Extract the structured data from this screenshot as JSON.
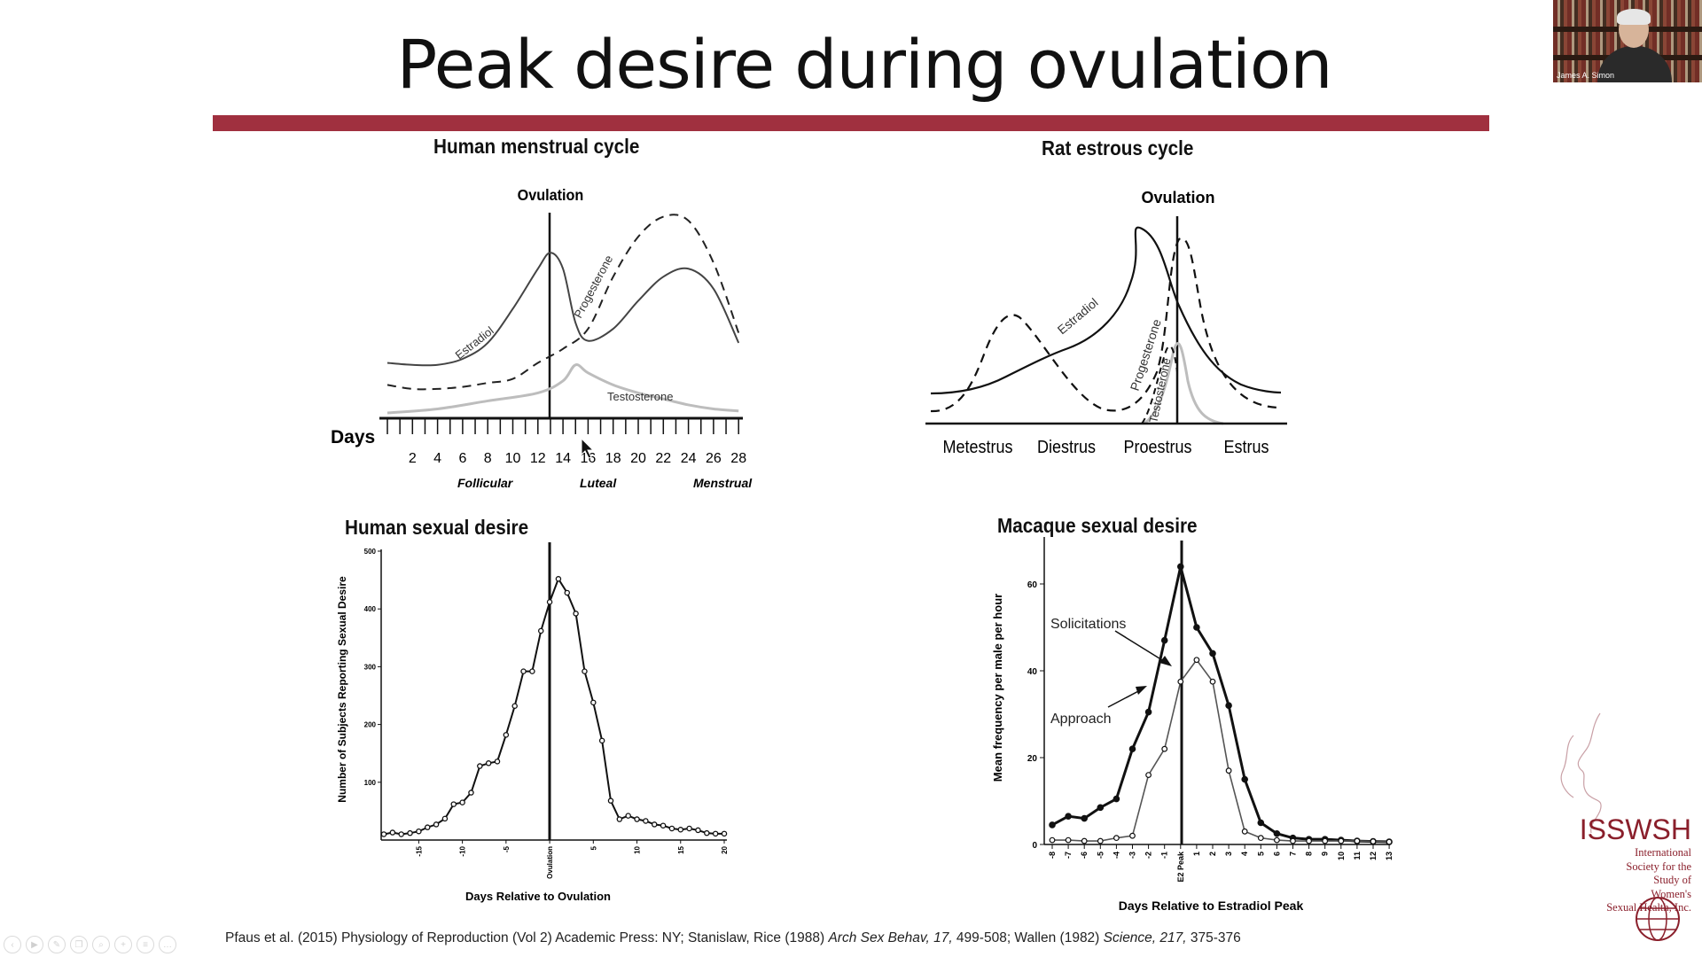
{
  "slide": {
    "title": "Peak desire during ovulation",
    "accent_color": "#a0303f"
  },
  "speaker": {
    "name": "James A. Simon"
  },
  "toolbar": {
    "icons": [
      "previous-icon",
      "play-icon",
      "pen-icon",
      "copy-icon",
      "zoom-icon",
      "zoom-in-icon",
      "menu-icon",
      "more-icon"
    ]
  },
  "panels": {
    "human_cycle": {
      "title": "Human menstrual cycle",
      "ovulation_label": "Ovulation",
      "estradiol_label": "Estradiol",
      "progesterone_label": "Progesterone",
      "testosterone_label": "Testosterone",
      "days_label": "Days",
      "phase_follicular": "Follicular",
      "phase_luteal": "Luteal",
      "phase_menstrual": "Menstrual"
    },
    "rat_cycle": {
      "title": "Rat estrous cycle",
      "ovulation_label": "Ovulation",
      "estradiol_label": "Estradiol",
      "progesterone_label": "Progesterone",
      "testosterone_label": "Testosterone"
    },
    "human_desire": {
      "title": "Human sexual desire",
      "ylabel": "Number of Subjects Reporting Sexual Desire",
      "xlabel": "Days Relative to Ovulation",
      "ovulation_tick": "Ovulation"
    },
    "macaque_desire": {
      "title": "Macaque sexual desire",
      "ylabel": "Mean frequency per male per hour",
      "xlabel": "Days Relative to Estradiol Peak",
      "solicitations_label": "Solicitations",
      "approach_label": "Approach",
      "peak_tick": "E2 Peak"
    }
  },
  "chart_data": [
    {
      "type": "line",
      "title": "Human menstrual cycle",
      "xlabel": "Days",
      "x_ticks": [
        "2",
        "4",
        "6",
        "8",
        "10",
        "12",
        "14",
        "16",
        "18",
        "20",
        "22",
        "24",
        "26",
        "28"
      ],
      "xlim": [
        0,
        29
      ],
      "phases": [
        "Follicular",
        "Luteal",
        "Menstrual"
      ],
      "ovulation_day": 14,
      "series": [
        {
          "name": "Estradiol",
          "style": "solid",
          "x": [
            0,
            2,
            4,
            6,
            8,
            10,
            12,
            13,
            14,
            15,
            16,
            18,
            20,
            22,
            24,
            26,
            28
          ],
          "y": [
            0.25,
            0.24,
            0.24,
            0.27,
            0.35,
            0.52,
            0.72,
            0.8,
            0.72,
            0.45,
            0.36,
            0.42,
            0.56,
            0.68,
            0.72,
            0.62,
            0.35
          ]
        },
        {
          "name": "Progesterone",
          "style": "dashed",
          "x": [
            0,
            2,
            4,
            6,
            8,
            10,
            12,
            14,
            16,
            18,
            20,
            22,
            24,
            26,
            28
          ],
          "y": [
            0.14,
            0.12,
            0.12,
            0.13,
            0.15,
            0.17,
            0.25,
            0.32,
            0.42,
            0.68,
            0.88,
            0.98,
            0.96,
            0.75,
            0.4
          ]
        },
        {
          "name": "Testosterone",
          "style": "solid",
          "color": "#bdbdbd",
          "x": [
            0,
            4,
            8,
            12,
            14,
            15,
            16,
            18,
            20,
            22,
            24,
            26,
            28
          ],
          "y": [
            0.0,
            0.02,
            0.06,
            0.1,
            0.16,
            0.24,
            0.2,
            0.14,
            0.1,
            0.07,
            0.04,
            0.02,
            0.01
          ]
        }
      ]
    },
    {
      "type": "line",
      "title": "Rat estrous cycle",
      "categories": [
        "Metestrus",
        "Diestrus",
        "Proestrus",
        "Estrus"
      ],
      "series": [
        {
          "name": "Estradiol",
          "style": "solid"
        },
        {
          "name": "Progesterone",
          "style": "dashed"
        },
        {
          "name": "Testosterone",
          "style": "solid",
          "color": "#bdbdbd"
        }
      ]
    },
    {
      "type": "line",
      "title": "Human sexual desire",
      "xlabel": "Days Relative to Ovulation",
      "ylabel": "Number of Subjects Reporting Sexual Desire",
      "xlim": [
        -19,
        20
      ],
      "ylim": [
        0,
        500
      ],
      "x_ticks": [
        "-15",
        "-10",
        "-5",
        "Ovulation",
        "5",
        "10",
        "15",
        "20"
      ],
      "y_ticks": [
        "100",
        "200",
        "300",
        "400",
        "500"
      ],
      "x": [
        -19,
        -18,
        -17,
        -16,
        -15,
        -14,
        -13,
        -12,
        -11,
        -10,
        -9,
        -8,
        -7,
        -6,
        -5,
        -4,
        -3,
        -2,
        -1,
        0,
        1,
        2,
        3,
        4,
        5,
        6,
        7,
        8,
        9,
        10,
        11,
        12,
        13,
        14,
        15,
        16,
        17,
        18,
        19,
        20
      ],
      "y": [
        10,
        13,
        10,
        12,
        15,
        22,
        27,
        37,
        62,
        65,
        82,
        128,
        133,
        136,
        182,
        232,
        292,
        292,
        362,
        412,
        452,
        428,
        392,
        292,
        238,
        172,
        68,
        36,
        42,
        36,
        33,
        27,
        25,
        20,
        18,
        20,
        17,
        12,
        11,
        11
      ]
    },
    {
      "type": "line",
      "title": "Macaque sexual desire",
      "xlabel": "Days Relative to Estradiol Peak",
      "ylabel": "Mean frequency per male per hour",
      "ylim": [
        0,
        70
      ],
      "x_ticks": [
        "-8",
        "-7",
        "-6",
        "-5",
        "-4",
        "-3",
        "-2",
        "-1",
        "E2 Peak",
        "1",
        "2",
        "3",
        "4",
        "5",
        "6",
        "7",
        "8",
        "9",
        "10",
        "11",
        "12",
        "13"
      ],
      "y_ticks": [
        "0",
        "20",
        "40",
        "60"
      ],
      "series": [
        {
          "name": "Solicitations",
          "marker": "filled",
          "x": [
            -8,
            -7,
            -6,
            -5,
            -4,
            -3,
            -2,
            -1,
            0,
            1,
            2,
            3,
            4,
            5,
            6,
            7,
            8,
            9,
            10,
            11,
            12,
            13
          ],
          "y": [
            4.5,
            6.5,
            6,
            8.5,
            10.5,
            22,
            30.5,
            47,
            64,
            50,
            44,
            32,
            15,
            5,
            2.5,
            1.5,
            1.2,
            1.2,
            1,
            0.8,
            0.7,
            0.6
          ]
        },
        {
          "name": "Approach",
          "marker": "open",
          "x": [
            -8,
            -7,
            -6,
            -5,
            -4,
            -3,
            -2,
            -1,
            0,
            1,
            2,
            3,
            4,
            5,
            6,
            7,
            8,
            9,
            10,
            11,
            12,
            13
          ],
          "y": [
            1,
            1,
            0.8,
            0.8,
            1.5,
            2,
            16,
            22,
            37.5,
            42.5,
            37.5,
            17,
            3,
            1.5,
            1,
            0.8,
            0.8,
            0.8,
            0.8,
            0.8,
            0.7,
            0.6
          ]
        }
      ]
    }
  ],
  "citation": {
    "part1": "Pfaus et al. (2015) Physiology of Reproduction (Vol 2) Academic Press: NY; Stanislaw, Rice (1988) ",
    "part2_italic": "Arch Sex Behav, 17,",
    "part3": " 499-508; Wallen (1982) ",
    "part4_italic": "Science, 217,",
    "part5": " 375-376"
  },
  "logo": {
    "acronym": "ISSWSH",
    "description": "International\nSociety for the\nStudy of\nWomen's\nSexual Health, Inc.",
    "color": "#8a1f2b"
  }
}
